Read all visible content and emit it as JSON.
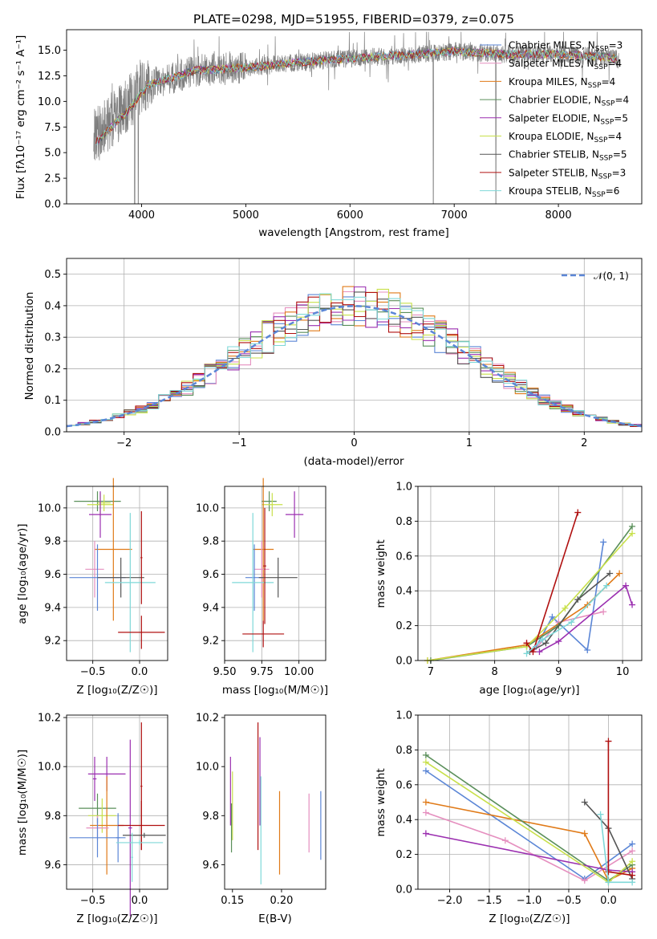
{
  "colors": {
    "chabrier_miles": "#5b86d6",
    "salpeter_miles": "#e58fbf",
    "kroupa_miles": "#e07a18",
    "chabrier_elodie": "#5a8f5a",
    "salpeter_elodie": "#9b2fb0",
    "kroupa_elodie": "#c8e04a",
    "chabrier_stelib": "#555555",
    "salpeter_stelib": "#b01010",
    "kroupa_stelib": "#7fd8d8",
    "normal_curve": "#5b86d6",
    "spectrum": "#7f7f7f"
  },
  "chart_data": [
    {
      "id": "spectrum",
      "type": "line",
      "title": "PLATE=0298, MJD=51955, FIBERID=0379, z=0.075",
      "xlabel": "wavelength [Angstrom, rest frame]",
      "ylabel": "Flux [fλ10⁻¹⁷ erg cm⁻² s⁻¹ A⁻¹]",
      "xlim": [
        3280,
        8800
      ],
      "ylim": [
        0,
        17
      ],
      "xticks": [
        "4000",
        "5000",
        "6000",
        "7000",
        "8000"
      ],
      "yticks": [
        "0.0",
        "2.5",
        "5.0",
        "7.5",
        "10.0",
        "12.5",
        "15.0"
      ],
      "grid": false,
      "legend_position": "right",
      "continuum": {
        "x": [
          3550,
          3700,
          3900,
          4000,
          4200,
          4500,
          5000,
          5500,
          6000,
          6500,
          7000,
          7500,
          8000,
          8500,
          8600
        ],
        "y": [
          6.5,
          8.0,
          10.0,
          11.5,
          12.0,
          13.0,
          13.3,
          13.8,
          14.2,
          14.5,
          14.9,
          14.6,
          14.6,
          14.3,
          14.0
        ]
      },
      "series": [
        {
          "name": "Chabrier MILES, N_SSP=3",
          "label_main": "Chabrier MILES, N",
          "label_sub": "SSP",
          "label_end": "=3",
          "color_key": "chabrier_miles"
        },
        {
          "name": "Salpeter MILES, N_SSP=4",
          "label_main": "Salpeter MILES, N",
          "label_sub": "SSP",
          "label_end": "=4",
          "color_key": "salpeter_miles"
        },
        {
          "name": "Kroupa MILES, N_SSP=4",
          "label_main": "Kroupa MILES, N",
          "label_sub": "SSP",
          "label_end": "=4",
          "color_key": "kroupa_miles"
        },
        {
          "name": "Chabrier ELODIE, N_SSP=4",
          "label_main": "Chabrier ELODIE, N",
          "label_sub": "SSP",
          "label_end": "=4",
          "color_key": "chabrier_elodie"
        },
        {
          "name": "Salpeter ELODIE, N_SSP=5",
          "label_main": "Salpeter ELODIE, N",
          "label_sub": "SSP",
          "label_end": "=5",
          "color_key": "salpeter_elodie"
        },
        {
          "name": "Kroupa ELODIE, N_SSP=4",
          "label_main": "Kroupa ELODIE, N",
          "label_sub": "SSP",
          "label_end": "=4",
          "color_key": "kroupa_elodie"
        },
        {
          "name": "Chabrier STELIB, N_SSP=5",
          "label_main": "Chabrier STELIB, N",
          "label_sub": "SSP",
          "label_end": "=5",
          "color_key": "chabrier_stelib"
        },
        {
          "name": "Salpeter STELIB, N_SSP=3",
          "label_main": "Salpeter STELIB, N",
          "label_sub": "SSP",
          "label_end": "=3",
          "color_key": "salpeter_stelib"
        },
        {
          "name": "Kroupa STELIB, N_SSP=6",
          "label_main": "Kroupa STELIB, N",
          "label_sub": "SSP",
          "label_end": "=6",
          "color_key": "kroupa_stelib"
        }
      ]
    },
    {
      "id": "residuals",
      "type": "line",
      "title": "",
      "xlabel": "(data-model)/error",
      "ylabel": "Normed distribution",
      "xlim": [
        -2.5,
        2.5
      ],
      "ylim": [
        0,
        0.55
      ],
      "xticks": [
        "−2",
        "−1",
        "0",
        "1",
        "2"
      ],
      "xtick_values": [
        -2,
        -1,
        0,
        1,
        2
      ],
      "yticks": [
        "0.0",
        "0.1",
        "0.2",
        "0.3",
        "0.4",
        "0.5"
      ],
      "grid": true,
      "legend_position": "top-right",
      "legend_label": "𝒩(0, 1)",
      "bin_start": -2.5,
      "bin_width": 0.1,
      "normal": {
        "mean": 0,
        "sigma": 1
      }
    },
    {
      "id": "z_vs_age",
      "type": "scatter",
      "xlabel": "Z [log₁₀(Z/Z☉)]",
      "ylabel": "age  [log₁₀(age/yr)]",
      "xlim": [
        -0.78,
        0.3
      ],
      "ylim": [
        9.08,
        10.13
      ],
      "xticks": [
        "−0.5",
        "0.0"
      ],
      "xtick_values": [
        -0.5,
        0.0
      ],
      "yticks": [
        "9.2",
        "9.4",
        "9.6",
        "9.8",
        "10.0"
      ],
      "ytick_values": [
        9.2,
        9.4,
        9.6,
        9.8,
        10.0
      ],
      "grid": true,
      "points": [
        {
          "x": -0.45,
          "y": 10.04,
          "xerr": 0.25,
          "yerr": 0.06,
          "color_key": "chabrier_elodie"
        },
        {
          "x": -0.42,
          "y": 10.02,
          "xerr": 0.14,
          "yerr": 0.07,
          "color_key": "kroupa_elodie"
        },
        {
          "x": -0.38,
          "y": 10.03,
          "xerr": 0.07,
          "yerr": 0.05,
          "color_key": "kroupa_elodie"
        },
        {
          "x": -0.42,
          "y": 9.96,
          "xerr": 0.12,
          "yerr": 0.14,
          "color_key": "salpeter_elodie"
        },
        {
          "x": -0.28,
          "y": 9.75,
          "xerr": 0.2,
          "yerr": 0.43,
          "color_key": "kroupa_miles"
        },
        {
          "x": -0.48,
          "y": 9.63,
          "xerr": 0.1,
          "yerr": 0.17,
          "color_key": "salpeter_miles"
        },
        {
          "x": -0.45,
          "y": 9.58,
          "xerr": 0.3,
          "yerr": 0.2,
          "color_key": "chabrier_miles"
        },
        {
          "x": -0.2,
          "y": 9.58,
          "xerr": 0.25,
          "yerr": 0.12,
          "color_key": "chabrier_stelib"
        },
        {
          "x": -0.1,
          "y": 9.55,
          "xerr": 0.27,
          "yerr": 0.42,
          "color_key": "kroupa_stelib"
        },
        {
          "x": 0.02,
          "y": 9.25,
          "xerr": 0.25,
          "yerr": 0.1,
          "color_key": "salpeter_stelib"
        },
        {
          "x": 0.02,
          "y": 9.7,
          "xerr": 0.01,
          "yerr": 0.28,
          "color_key": "salpeter_stelib"
        }
      ]
    },
    {
      "id": "mass_vs_age",
      "type": "scatter",
      "xlabel": "mass [log₁₀(M/M☉)]",
      "ylabel": "",
      "xlim": [
        9.5,
        10.18
      ],
      "ylim": [
        9.08,
        10.13
      ],
      "xticks": [
        "9.50",
        "9.75",
        "10.00"
      ],
      "xtick_values": [
        9.5,
        9.75,
        10.0
      ],
      "yticks": [
        "9.2",
        "9.4",
        "9.6",
        "9.8",
        "10.0"
      ],
      "ytick_values": [
        9.2,
        9.4,
        9.6,
        9.8,
        10.0
      ],
      "grid": true,
      "points": [
        {
          "x": 9.8,
          "y": 10.04,
          "xerr": 0.05,
          "yerr": 0.06,
          "color_key": "chabrier_elodie"
        },
        {
          "x": 9.82,
          "y": 10.02,
          "xerr": 0.07,
          "yerr": 0.07,
          "color_key": "kroupa_elodie"
        },
        {
          "x": 9.97,
          "y": 9.96,
          "xerr": 0.06,
          "yerr": 0.14,
          "color_key": "salpeter_elodie"
        },
        {
          "x": 9.76,
          "y": 9.75,
          "xerr": 0.07,
          "yerr": 0.43,
          "color_key": "kroupa_miles"
        },
        {
          "x": 9.75,
          "y": 9.63,
          "xerr": 0.05,
          "yerr": 0.17,
          "color_key": "salpeter_miles"
        },
        {
          "x": 9.7,
          "y": 9.58,
          "xerr": 0.06,
          "yerr": 0.2,
          "color_key": "chabrier_miles"
        },
        {
          "x": 9.86,
          "y": 9.58,
          "xerr": 0.13,
          "yerr": 0.12,
          "color_key": "chabrier_stelib"
        },
        {
          "x": 9.69,
          "y": 9.55,
          "xerr": 0.14,
          "yerr": 0.42,
          "color_key": "kroupa_stelib"
        },
        {
          "x": 9.76,
          "y": 9.24,
          "xerr": 0.14,
          "yerr": 0.08,
          "color_key": "salpeter_stelib"
        },
        {
          "x": 9.77,
          "y": 9.65,
          "xerr": 0.01,
          "yerr": 0.35,
          "color_key": "salpeter_stelib"
        }
      ]
    },
    {
      "id": "age_vs_massweight",
      "type": "line",
      "xlabel": "age  [log₁₀(age/yr)]",
      "ylabel": "mass weight",
      "xlim": [
        6.8,
        10.3
      ],
      "ylim": [
        0,
        1
      ],
      "xticks": [
        "7",
        "8",
        "9",
        "10"
      ],
      "xtick_values": [
        7,
        8,
        9,
        10
      ],
      "yticks": [
        "0.0",
        "0.2",
        "0.4",
        "0.6",
        "0.8",
        "1.0"
      ],
      "ytick_values": [
        0,
        0.2,
        0.4,
        0.6,
        0.8,
        1.0
      ],
      "grid": true,
      "series": [
        {
          "color_key": "chabrier_miles",
          "x": [
            8.65,
            8.9,
            9.45,
            9.7
          ],
          "y": [
            0.08,
            0.25,
            0.06,
            0.68
          ]
        },
        {
          "color_key": "salpeter_miles",
          "x": [
            8.5,
            8.6,
            9.0,
            9.7
          ],
          "y": [
            0.1,
            0.05,
            0.22,
            0.28
          ]
        },
        {
          "color_key": "kroupa_miles",
          "x": [
            6.95,
            8.5,
            9.45,
            9.95
          ],
          "y": [
            0.0,
            0.09,
            0.32,
            0.5
          ]
        },
        {
          "color_key": "chabrier_elodie",
          "x": [
            7.0,
            8.5,
            9.0,
            10.15
          ],
          "y": [
            0.0,
            0.08,
            0.2,
            0.77
          ]
        },
        {
          "color_key": "salpeter_elodie",
          "x": [
            8.7,
            9.0,
            10.05,
            10.15
          ],
          "y": [
            0.05,
            0.11,
            0.43,
            0.32
          ]
        },
        {
          "color_key": "kroupa_elodie",
          "x": [
            6.95,
            8.5,
            9.1,
            10.15
          ],
          "y": [
            0.0,
            0.08,
            0.3,
            0.73
          ]
        },
        {
          "color_key": "chabrier_stelib",
          "x": [
            8.55,
            8.8,
            9.3,
            9.8
          ],
          "y": [
            0.05,
            0.1,
            0.35,
            0.5
          ]
        },
        {
          "color_key": "salpeter_stelib",
          "x": [
            8.5,
            8.6,
            9.3
          ],
          "y": [
            0.1,
            0.05,
            0.85
          ]
        },
        {
          "color_key": "kroupa_stelib",
          "x": [
            8.5,
            8.75,
            9.2,
            9.75
          ],
          "y": [
            0.04,
            0.12,
            0.22,
            0.43
          ]
        }
      ]
    },
    {
      "id": "z_vs_mass",
      "type": "scatter",
      "xlabel": "Z [log₁₀(Z/Z☉)]",
      "ylabel": "mass [log₁₀(M/M☉)]",
      "xlim": [
        -0.78,
        0.3
      ],
      "ylim": [
        9.5,
        10.21
      ],
      "xticks": [
        "−0.5",
        "0.0"
      ],
      "xtick_values": [
        -0.5,
        0.0
      ],
      "yticks": [
        "9.6",
        "9.8",
        "10.0",
        "10.2"
      ],
      "ytick_values": [
        9.6,
        9.8,
        10.0,
        10.2
      ],
      "grid": true,
      "points": [
        {
          "x": -0.45,
          "y": 9.83,
          "xerr": 0.2,
          "yerr": 0.06,
          "color_key": "chabrier_elodie"
        },
        {
          "x": -0.4,
          "y": 9.8,
          "xerr": 0.15,
          "yerr": 0.07,
          "color_key": "kroupa_elodie"
        },
        {
          "x": -0.35,
          "y": 9.97,
          "xerr": 0.2,
          "yerr": 0.07,
          "color_key": "salpeter_elodie"
        },
        {
          "x": -0.48,
          "y": 9.95,
          "xerr": 0.02,
          "yerr": 0.09,
          "color_key": "salpeter_elodie"
        },
        {
          "x": -0.35,
          "y": 9.76,
          "xerr": 0.18,
          "yerr": 0.2,
          "color_key": "kroupa_miles"
        },
        {
          "x": -0.45,
          "y": 9.75,
          "xerr": 0.12,
          "yerr": 0.05,
          "color_key": "salpeter_miles"
        },
        {
          "x": -0.45,
          "y": 9.71,
          "xerr": 0.3,
          "yerr": 0.08,
          "color_key": "chabrier_miles"
        },
        {
          "x": -0.23,
          "y": 9.71,
          "xerr": 0.02,
          "yerr": 0.1,
          "color_key": "chabrier_miles"
        },
        {
          "x": -0.1,
          "y": 9.75,
          "xerr": 0.02,
          "yerr": 0.36,
          "color_key": "salpeter_elodie"
        },
        {
          "x": 0.02,
          "y": 9.76,
          "xerr": 0.25,
          "yerr": 0.1,
          "color_key": "salpeter_stelib"
        },
        {
          "x": 0.02,
          "y": 9.92,
          "xerr": 0.01,
          "yerr": 0.26,
          "color_key": "salpeter_stelib"
        },
        {
          "x": 0.05,
          "y": 9.72,
          "xerr": 0.23,
          "yerr": 0.01,
          "color_key": "chabrier_stelib"
        },
        {
          "x": 0.0,
          "y": 9.69,
          "xerr": 0.25,
          "yerr": 0.01,
          "color_key": "kroupa_stelib"
        },
        {
          "x": -0.08,
          "y": 9.63,
          "xerr": 0.01,
          "yerr": 0.1,
          "color_key": "kroupa_stelib"
        }
      ]
    },
    {
      "id": "ebv_vs_mass",
      "type": "scatter",
      "xlabel": "E(B-V)",
      "ylabel": "",
      "xlim": [
        0.142,
        0.245
      ],
      "ylim": [
        9.5,
        10.21
      ],
      "xticks": [
        "0.15",
        "0.20"
      ],
      "xtick_values": [
        0.15,
        0.2
      ],
      "yticks": [
        "9.6",
        "9.8",
        "10.0",
        "10.2"
      ],
      "ytick_values": [
        9.6,
        9.8,
        10.0,
        10.2
      ],
      "grid": false,
      "points": [
        {
          "x": 0.148,
          "y": 9.9,
          "xerr": 0,
          "yerr": 0.14,
          "color_key": "salpeter_elodie"
        },
        {
          "x": 0.15,
          "y": 9.84,
          "xerr": 0,
          "yerr": 0.14,
          "color_key": "kroupa_elodie"
        },
        {
          "x": 0.149,
          "y": 9.75,
          "xerr": 0,
          "yerr": 0.1,
          "color_key": "chabrier_elodie"
        },
        {
          "x": 0.176,
          "y": 9.92,
          "xerr": 0,
          "yerr": 0.26,
          "color_key": "salpeter_stelib"
        },
        {
          "x": 0.178,
          "y": 9.94,
          "xerr": 0,
          "yerr": 0.18,
          "color_key": "salpeter_elodie"
        },
        {
          "x": 0.179,
          "y": 9.74,
          "xerr": 0,
          "yerr": 0.22,
          "color_key": "kroupa_stelib"
        },
        {
          "x": 0.198,
          "y": 9.73,
          "xerr": 0,
          "yerr": 0.17,
          "color_key": "kroupa_miles"
        },
        {
          "x": 0.228,
          "y": 9.77,
          "xerr": 0,
          "yerr": 0.12,
          "color_key": "salpeter_miles"
        },
        {
          "x": 0.24,
          "y": 9.76,
          "xerr": 0,
          "yerr": 0.14,
          "color_key": "chabrier_miles"
        }
      ]
    },
    {
      "id": "z_vs_massweight",
      "type": "line",
      "xlabel": "Z [log₁₀(Z/Z☉)]",
      "ylabel": "mass weight",
      "xlim": [
        -2.4,
        0.42
      ],
      "ylim": [
        0,
        1
      ],
      "xticks": [
        "−2.0",
        "−1.5",
        "−1.0",
        "−0.5",
        "0.0"
      ],
      "xtick_values": [
        -2.0,
        -1.5,
        -1.0,
        -0.5,
        0.0
      ],
      "yticks": [
        "0.0",
        "0.2",
        "0.4",
        "0.6",
        "0.8",
        "1.0"
      ],
      "ytick_values": [
        0,
        0.2,
        0.4,
        0.6,
        0.8,
        1.0
      ],
      "grid": true,
      "series": [
        {
          "color_key": "chabrier_miles",
          "x": [
            -2.3,
            -0.3,
            0.3
          ],
          "y": [
            0.68,
            0.06,
            0.26
          ]
        },
        {
          "color_key": "salpeter_miles",
          "x": [
            -2.3,
            -1.3,
            -0.3,
            0.3
          ],
          "y": [
            0.44,
            0.28,
            0.05,
            0.22
          ]
        },
        {
          "color_key": "kroupa_miles",
          "x": [
            -2.3,
            -0.3,
            0.0,
            0.3
          ],
          "y": [
            0.5,
            0.32,
            0.05,
            0.12
          ]
        },
        {
          "color_key": "chabrier_elodie",
          "x": [
            -2.3,
            0.0,
            0.3
          ],
          "y": [
            0.77,
            0.05,
            0.14
          ]
        },
        {
          "color_key": "salpeter_elodie",
          "x": [
            -2.3,
            0.0,
            0.3
          ],
          "y": [
            0.32,
            0.11,
            0.1
          ]
        },
        {
          "color_key": "kroupa_elodie",
          "x": [
            -2.3,
            0.0,
            0.3
          ],
          "y": [
            0.73,
            0.04,
            0.16
          ]
        },
        {
          "color_key": "chabrier_stelib",
          "x": [
            -0.3,
            0.0,
            0.3
          ],
          "y": [
            0.5,
            0.35,
            0.06
          ]
        },
        {
          "color_key": "salpeter_stelib",
          "x": [
            0.0,
            0.0,
            0.3
          ],
          "y": [
            0.85,
            0.1,
            0.08
          ]
        },
        {
          "color_key": "kroupa_stelib",
          "x": [
            -0.1,
            0.0,
            0.3
          ],
          "y": [
            0.43,
            0.04,
            0.04
          ]
        }
      ]
    }
  ]
}
